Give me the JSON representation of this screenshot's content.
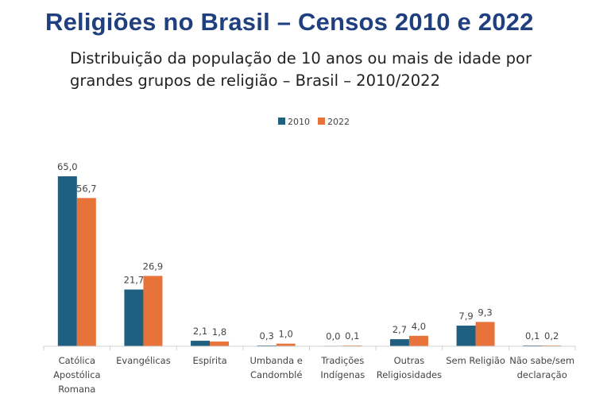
{
  "page": {
    "title": "Religiões no Brasil – Censos 2010 e 2022",
    "subtitle_lines": [
      "Distribuição da população de 10 anos ou mais de idade por",
      "grandes grupos de religião – Brasil – 2010/2022"
    ]
  },
  "chart_data": {
    "type": "bar",
    "title": "",
    "xlabel": "",
    "ylabel": "",
    "ylim": [
      0,
      65
    ],
    "legend_position": "top-center",
    "categories": [
      [
        "Católica",
        "Apostólica",
        "Romana"
      ],
      [
        "Evangélicas"
      ],
      [
        "Espírita"
      ],
      [
        "Umbanda e",
        "Candomblé"
      ],
      [
        "Tradições",
        "Indígenas"
      ],
      [
        "Outras",
        "Religiosidades"
      ],
      [
        "Sem Religião"
      ],
      [
        "Não sabe/sem",
        "declaração"
      ]
    ],
    "series": [
      {
        "name": "2010",
        "color": "#1f5f7f",
        "values": [
          65.0,
          21.7,
          2.1,
          0.3,
          0.0,
          2.7,
          7.9,
          0.1
        ],
        "labels": [
          "65,0",
          "21,7",
          "2,1",
          "0,3",
          "0,0",
          "2,7",
          "7,9",
          "0,1"
        ]
      },
      {
        "name": "2022",
        "color": "#e8733a",
        "values": [
          56.7,
          26.9,
          1.8,
          1.0,
          0.1,
          4.0,
          9.3,
          0.2
        ],
        "labels": [
          "56,7",
          "26,9",
          "1,8",
          "1,0",
          "0,1",
          "4,0",
          "9,3",
          "0,2"
        ]
      }
    ]
  }
}
